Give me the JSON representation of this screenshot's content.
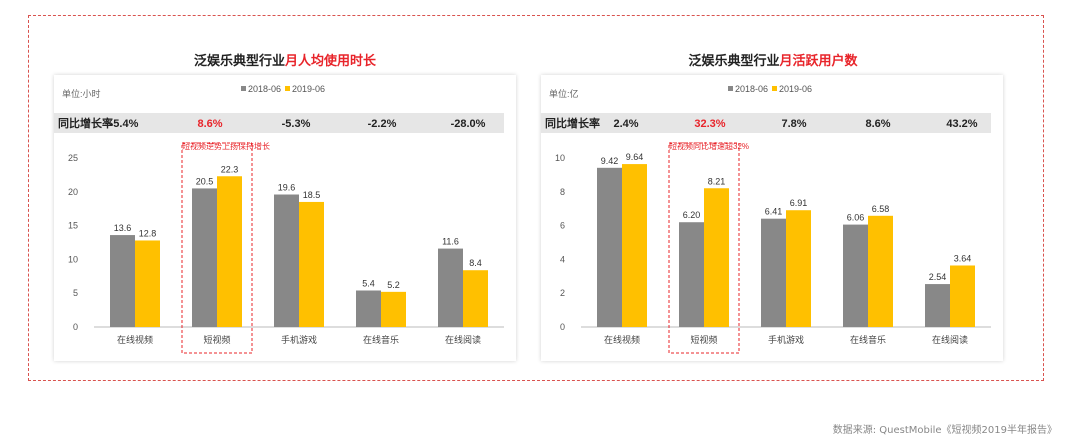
{
  "chart_data": [
    {
      "type": "bar",
      "title_black": "泛娱乐典型行业",
      "title_red": "月人均使用时长",
      "unit": "单位:小时",
      "yoy_label": "同比增长率",
      "yoy_values": [
        "-5.4%",
        "8.6%",
        "-5.3%",
        "-2.2%",
        "-28.0%"
      ],
      "yoy_highlight_index": 1,
      "annotation": "短视频逆势上扬保持增长",
      "highlight_index": 1,
      "categories": [
        "在线视频",
        "短视频",
        "手机游戏",
        "在线音乐",
        "在线阅读"
      ],
      "series": [
        {
          "name": "2018-06",
          "color": "#888888",
          "values": [
            13.6,
            20.5,
            19.6,
            5.4,
            11.6
          ]
        },
        {
          "name": "2019-06",
          "color": "#ffc000",
          "values": [
            12.8,
            22.3,
            18.5,
            5.2,
            8.4
          ]
        }
      ],
      "value_labels": [
        [
          "13.6",
          "20.5",
          "19.6",
          "5.4",
          "11.6"
        ],
        [
          "12.8",
          "22.3",
          "18.5",
          "5.2",
          "8.4"
        ]
      ],
      "ylim": [
        0,
        25
      ],
      "yticks": [
        0,
        5,
        10,
        15,
        20,
        25
      ],
      "legend_position": "top-center"
    },
    {
      "type": "bar",
      "title_black": "泛娱乐典型行业",
      "title_red": "月活跃用户数",
      "unit": "单位:亿",
      "yoy_label": "同比增长率",
      "yoy_values": [
        "2.4%",
        "32.3%",
        "7.8%",
        "8.6%",
        "43.2%"
      ],
      "yoy_highlight_index": 1,
      "annotation": "短视频同比增速超32%",
      "highlight_index": 1,
      "categories": [
        "在线视频",
        "短视频",
        "手机游戏",
        "在线音乐",
        "在线阅读"
      ],
      "series": [
        {
          "name": "2018-06",
          "color": "#888888",
          "values": [
            9.42,
            6.2,
            6.41,
            6.06,
            2.54
          ]
        },
        {
          "name": "2019-06",
          "color": "#ffc000",
          "values": [
            9.64,
            8.21,
            6.91,
            6.58,
            3.64
          ]
        }
      ],
      "value_labels": [
        [
          "9.42",
          "6.20",
          "6.41",
          "6.06",
          "2.54"
        ],
        [
          "9.64",
          "8.21",
          "6.91",
          "6.58",
          "3.64"
        ]
      ],
      "ylim": [
        0,
        10
      ],
      "yticks": [
        0,
        2,
        4,
        6,
        8,
        10
      ],
      "legend_position": "top-center"
    }
  ],
  "source": "数据来源: QuestMobile《短视频2019半年报告》",
  "colors": {
    "frame": "#d9534f",
    "title_red": "#e8242a",
    "gray_bar": "#888888",
    "yellow_bar": "#ffc000",
    "yoy_band": "#e6e6e6"
  }
}
